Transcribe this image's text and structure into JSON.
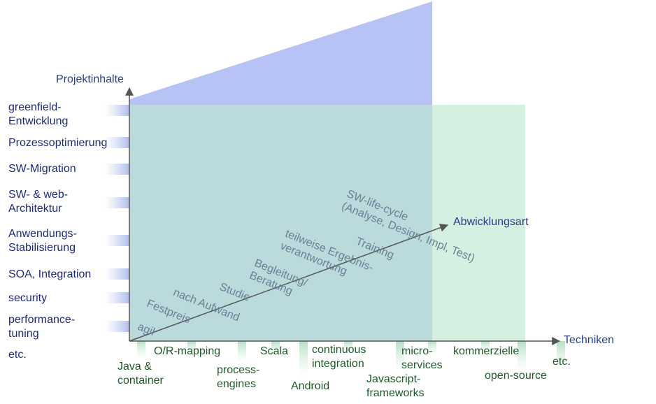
{
  "axes": {
    "y_title": "Projektinhalte",
    "x_title": "Techniken",
    "diag_title": "Abwicklungsart"
  },
  "project_contents": [
    "greenfield-\nEntwicklung",
    "Prozessoptimierung",
    "SW-Migration",
    "SW- & web-\nArchitektur",
    "Anwendungs-\nStabilisierung",
    "SOA, Integration",
    "security",
    "performance-\ntuning",
    "etc."
  ],
  "techniques": [
    "Java &\ncontainer",
    "O/R-mapping",
    "process-\nengines",
    "Scala",
    "Android",
    "continuous\nintegration",
    "Javascript-\nframeworks",
    "micro-\nservices",
    "kommerzielle",
    "open-source",
    "etc."
  ],
  "delivery_modes": [
    "agil",
    "Festpreis",
    "nach Aufwand",
    "Studie",
    "Begleitung/\nBeratung",
    "teilweise Ergebnis-\nverantwortung",
    "Training",
    "SW-life-cycle\n(Analyse, Design, Impl, Test)"
  ],
  "colors": {
    "blue_area": "#a9b9f2",
    "green_area": "#bfe6cf",
    "axis": "#555555",
    "label_blue": "#1f2a7a",
    "label_green": "#1e5a2a"
  }
}
